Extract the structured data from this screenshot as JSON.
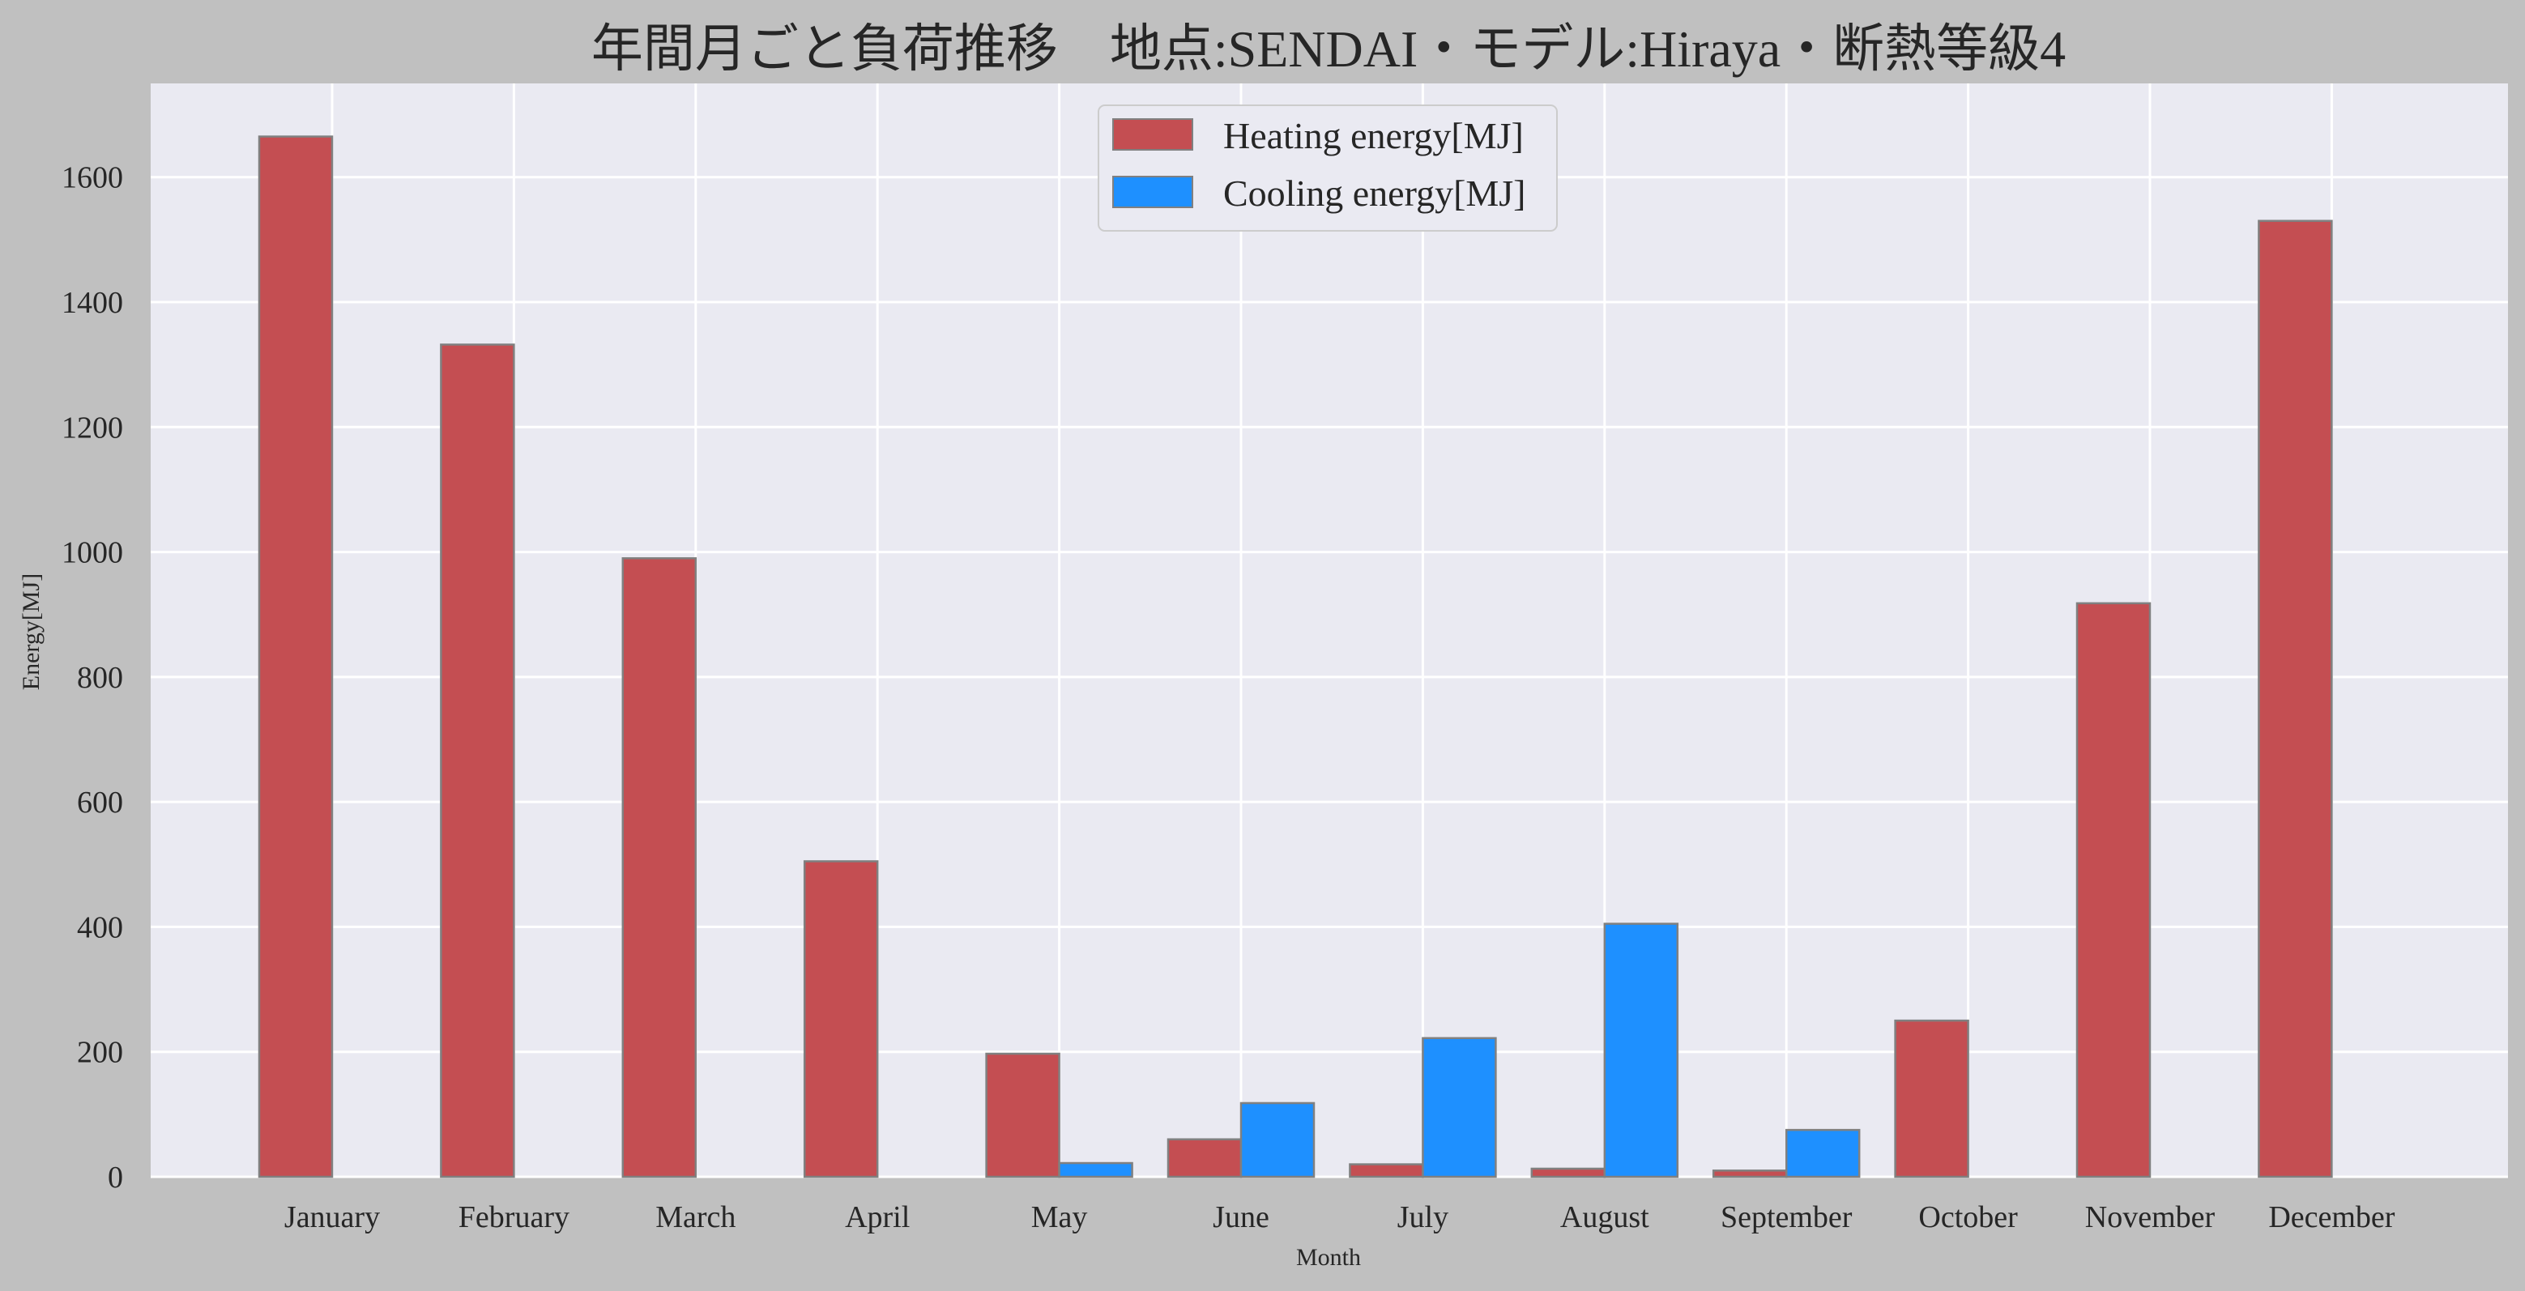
{
  "chart_data": {
    "type": "bar",
    "title": "年間月ごと負荷推移　地点:SENDAI・モデル:Hiraya・断熱等級4",
    "xlabel": "Month",
    "ylabel": "Energy[MJ]",
    "categories": [
      "January",
      "February",
      "March",
      "April",
      "May",
      "June",
      "July",
      "August",
      "September",
      "October",
      "November",
      "December"
    ],
    "series": [
      {
        "name": "Heating energy[MJ]",
        "color": "#c44e52",
        "values": [
          1665,
          1332,
          990,
          505,
          197,
          60,
          20,
          13,
          10,
          250,
          918,
          1530
        ]
      },
      {
        "name": "Cooling energy[MJ]",
        "color": "#1e90ff",
        "values": [
          0,
          0,
          0,
          0,
          22,
          118,
          222,
          405,
          75,
          0,
          0,
          0
        ]
      }
    ],
    "ylim": [
      0,
      1750
    ],
    "yticks": [
      0,
      200,
      400,
      600,
      800,
      1000,
      1200,
      1400,
      1600
    ],
    "grid": true,
    "legend_position": "top-center",
    "background_color": "#eaeaf2",
    "figure_color": "#c0c0c0"
  }
}
